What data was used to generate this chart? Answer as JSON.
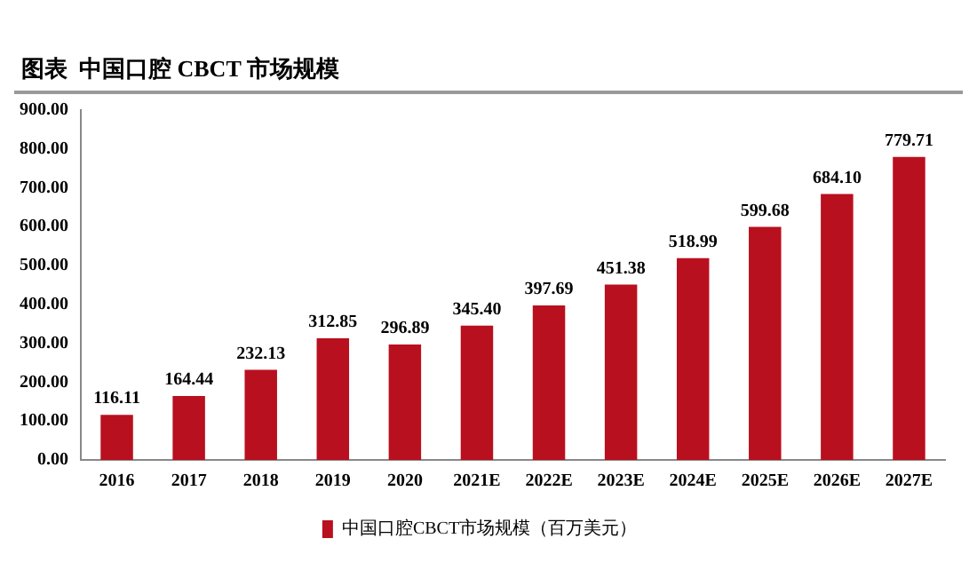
{
  "chart_data": {
    "type": "bar",
    "title": "图表  中国口腔 CBCT 市场规模",
    "categories": [
      "2016",
      "2017",
      "2018",
      "2019",
      "2020",
      "2021E",
      "2022E",
      "2023E",
      "2024E",
      "2025E",
      "2026E",
      "2027E"
    ],
    "series": [
      {
        "name": "中国口腔CBCT市场规模（百万美元）",
        "color": "#b8101f",
        "values": [
          116.11,
          164.44,
          232.13,
          312.85,
          296.89,
          345.4,
          397.69,
          451.38,
          518.99,
          599.68,
          684.1,
          779.71
        ],
        "value_labels": [
          "116.11",
          "164.44",
          "232.13",
          "312.85",
          "296.89",
          "345.40",
          "397.69",
          "451.38",
          "518.99",
          "599.68",
          "684.10",
          "779.71"
        ]
      }
    ],
    "ylim": [
      0,
      900
    ],
    "yticks": [
      {
        "value": 0,
        "label": "0.00"
      },
      {
        "value": 100,
        "label": "100.00"
      },
      {
        "value": 200,
        "label": "200.00"
      },
      {
        "value": 300,
        "label": "300.00"
      },
      {
        "value": 400,
        "label": "400.00"
      },
      {
        "value": 500,
        "label": "500.00"
      },
      {
        "value": 600,
        "label": "600.00"
      },
      {
        "value": 700,
        "label": "700.00"
      },
      {
        "value": 800,
        "label": "800.00"
      },
      {
        "value": 900,
        "label": "900.00"
      }
    ],
    "grid": false,
    "legend": "bottom"
  }
}
